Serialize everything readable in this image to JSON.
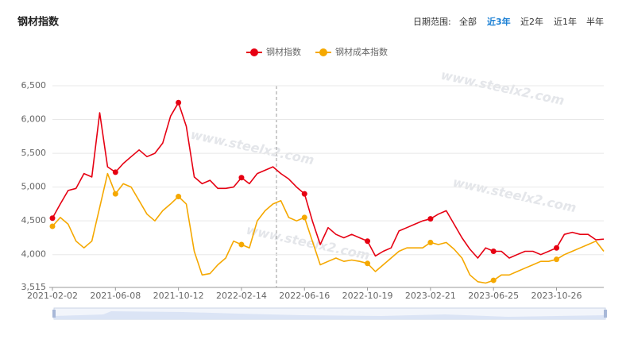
{
  "header": {
    "title": "钢材指数",
    "range_label": "日期范围:",
    "range_options": [
      "全部",
      "近3年",
      "近2年",
      "近1年",
      "半年"
    ]
  },
  "watermark": "www.steelx2.com",
  "chart_data": {
    "type": "line",
    "categories": [
      "2021-02-02",
      null,
      null,
      null,
      null,
      null,
      null,
      null,
      "2021-06-08",
      null,
      null,
      null,
      null,
      null,
      null,
      null,
      "2021-10-12",
      null,
      null,
      null,
      null,
      null,
      null,
      null,
      "2022-02-14",
      null,
      null,
      null,
      null,
      null,
      null,
      null,
      "2022-06-16",
      null,
      null,
      null,
      null,
      null,
      null,
      null,
      "2022-10-19",
      null,
      null,
      null,
      null,
      null,
      null,
      null,
      "2023-02-21",
      null,
      null,
      null,
      null,
      null,
      null,
      null,
      "2023-06-25",
      null,
      null,
      null,
      null,
      null,
      null,
      null,
      "2023-10-26",
      null,
      null,
      null,
      null,
      null,
      null
    ],
    "series": [
      {
        "name": "钢材指数",
        "color": "#e60012",
        "values": [
          4540,
          4750,
          4950,
          4980,
          5200,
          5150,
          6100,
          5300,
          5220,
          5350,
          5450,
          5550,
          5450,
          5500,
          5650,
          6050,
          6250,
          5900,
          5150,
          5050,
          5100,
          4980,
          4980,
          5000,
          5140,
          5050,
          5200,
          5250,
          5300,
          5200,
          5120,
          5000,
          4900,
          4500,
          4150,
          4400,
          4300,
          4250,
          4300,
          4250,
          4200,
          3980,
          4050,
          4100,
          4350,
          4400,
          4450,
          4500,
          4530,
          4600,
          4650,
          4450,
          4250,
          4080,
          3950,
          4100,
          4050,
          4050,
          3950,
          4000,
          4050,
          4050,
          4000,
          4050,
          4100,
          4300,
          4330,
          4300,
          4300,
          4220,
          4230
        ]
      },
      {
        "name": "钢材成本指数",
        "color": "#f5a800",
        "values": [
          4420,
          4550,
          4450,
          4200,
          4100,
          4200,
          4700,
          5200,
          4900,
          5050,
          5000,
          4800,
          4600,
          4500,
          4650,
          4750,
          4860,
          4750,
          4050,
          3700,
          3720,
          3850,
          3950,
          4200,
          4150,
          4100,
          4500,
          4650,
          4750,
          4800,
          4550,
          4500,
          4550,
          4200,
          3850,
          3900,
          3950,
          3900,
          3920,
          3900,
          3870,
          3750,
          3850,
          3950,
          4050,
          4100,
          4100,
          4100,
          4180,
          4150,
          4180,
          4080,
          3950,
          3700,
          3600,
          3580,
          3620,
          3700,
          3700,
          3750,
          3800,
          3850,
          3900,
          3900,
          3930,
          4000,
          4050,
          4100,
          4150,
          4200,
          4050
        ]
      }
    ],
    "ylim": [
      3515,
      6500
    ],
    "yticks": [
      {
        "value": 3515,
        "label": "3,515"
      },
      {
        "value": 4000,
        "label": "4,000"
      },
      {
        "value": 4500,
        "label": "4,500"
      },
      {
        "value": 5000,
        "label": "5,000"
      },
      {
        "value": 5500,
        "label": "5,500"
      },
      {
        "value": 6000,
        "label": "6,000"
      },
      {
        "value": 6500,
        "label": "6,500"
      }
    ],
    "grid": true,
    "legend": "top"
  }
}
